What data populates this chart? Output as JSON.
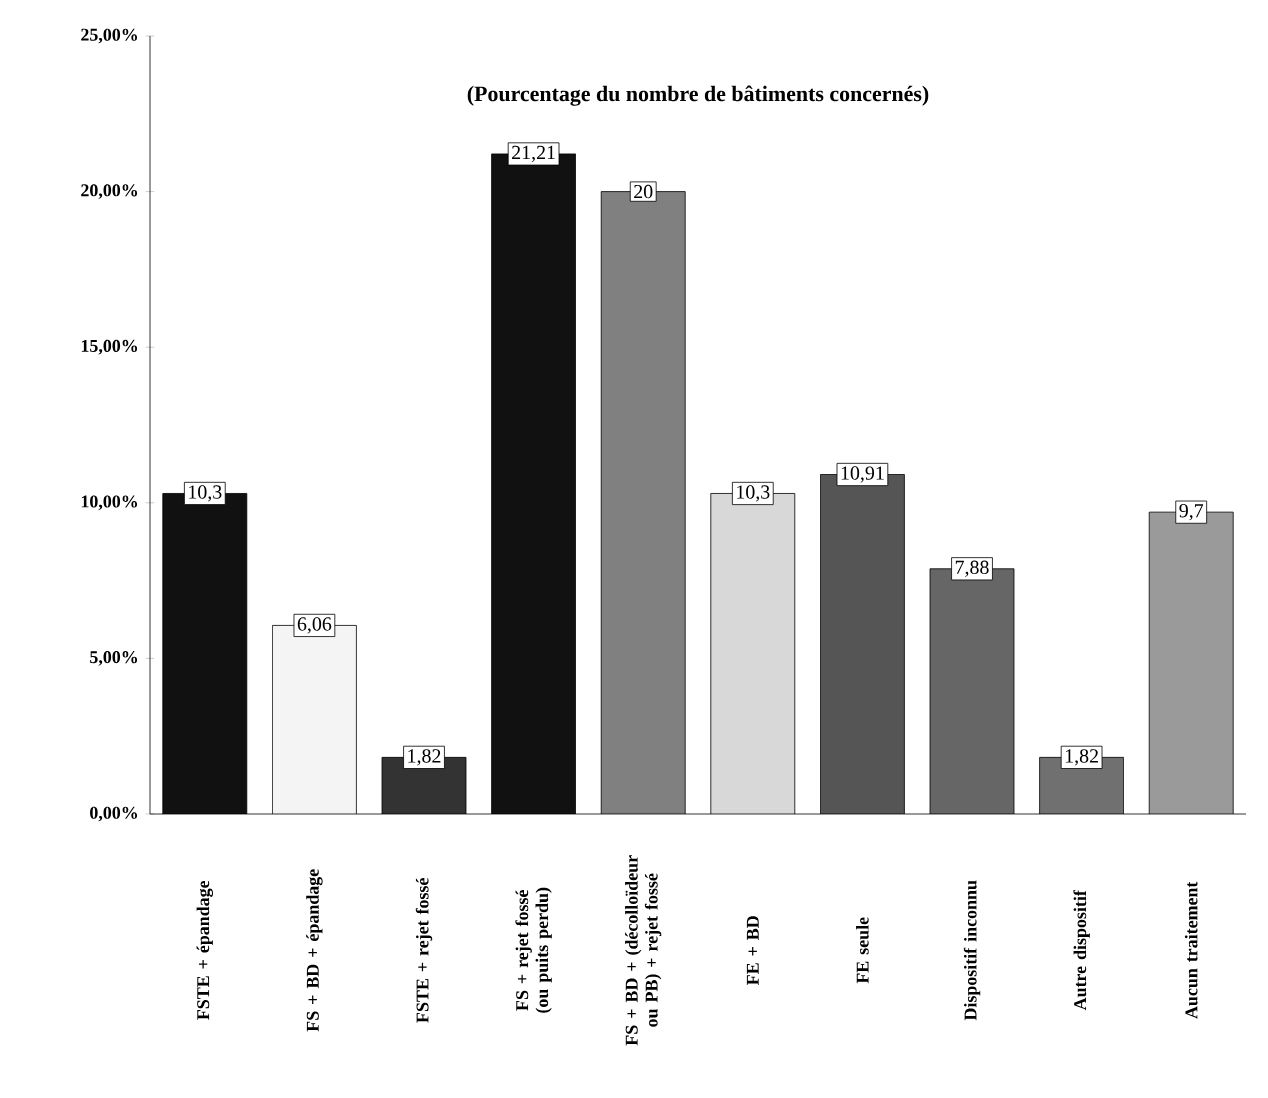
{
  "chart_data": {
    "type": "bar",
    "title": "(Pourcentage du nombre de bâtiments concernés)",
    "categories": [
      "FSTE + épandage",
      "FS + BD + épandage",
      "FSTE + rejet fossé",
      "FS + rejet fossé (ou puits perdu)",
      "FS + BD + (décolloïdeur ou PB) + rejet fossé",
      "FE + BD",
      "FE seule",
      "Dispositif inconnu",
      "Autre dispositif",
      "Aucun traitement"
    ],
    "values": [
      10.3,
      6.06,
      1.82,
      21.21,
      20,
      10.3,
      10.91,
      7.88,
      1.82,
      9.7
    ],
    "value_labels": [
      "10,3",
      "6,06",
      "1,82",
      "21,21",
      "20",
      "10,3",
      "10,91",
      "7,88",
      "1,82",
      "9,7"
    ],
    "colors": [
      "#111111",
      "#f4f4f4",
      "#333333",
      "#111111",
      "#808080",
      "#d8d8d8",
      "#555555",
      "#666666",
      "#707070",
      "#9a9a9a"
    ],
    "ylim": [
      0,
      25
    ],
    "yticks": [
      {
        "value": 0,
        "label": "0,00%"
      },
      {
        "value": 5,
        "label": "5,00%"
      },
      {
        "value": 10,
        "label": "10,00%"
      },
      {
        "value": 15,
        "label": "15,00%"
      },
      {
        "value": 20,
        "label": "20,00%"
      },
      {
        "value": 25,
        "label": "25,00%"
      }
    ],
    "grid": false
  }
}
